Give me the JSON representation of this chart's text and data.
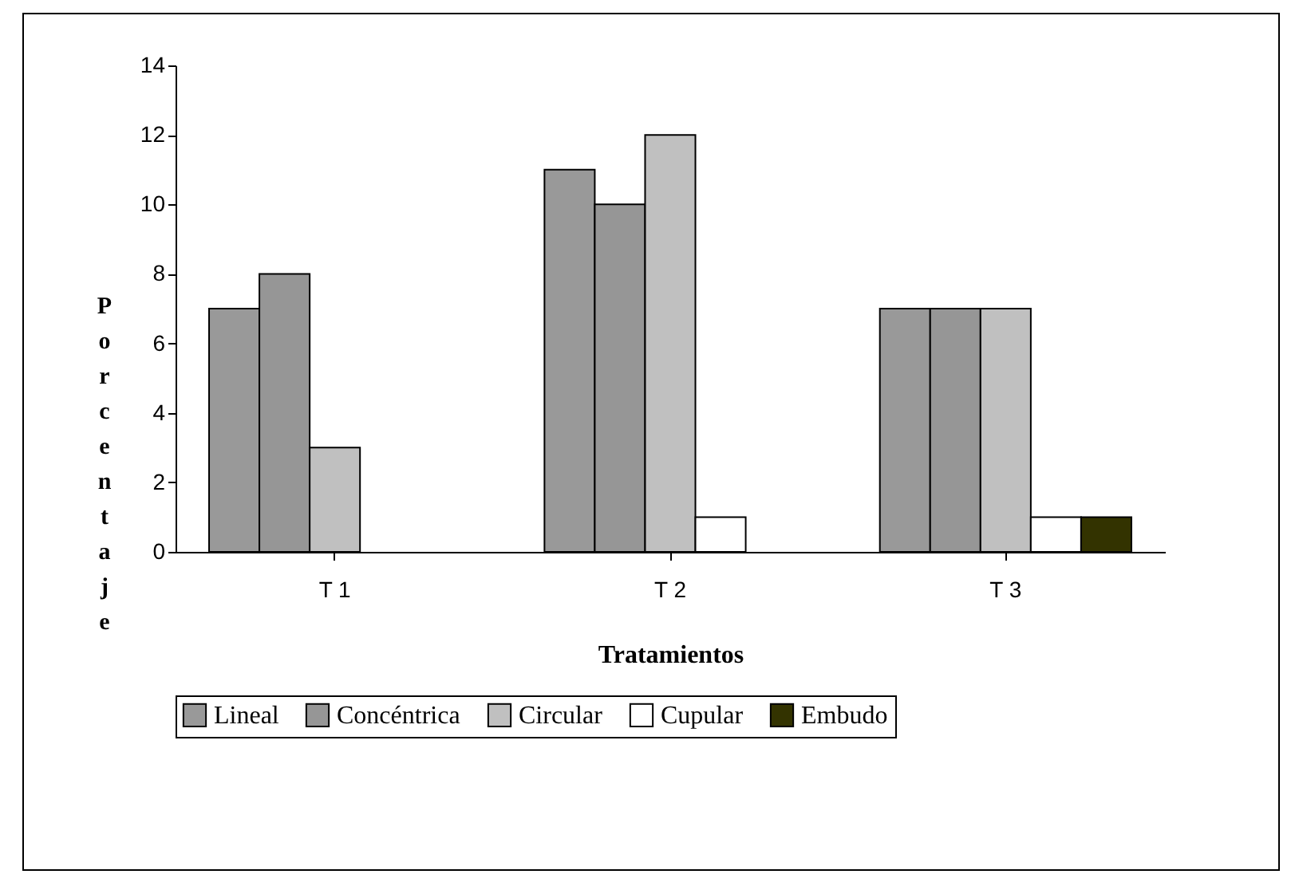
{
  "chart_data": {
    "type": "bar",
    "xlabel": "Tratamientos",
    "ylabel": "Porcentaje",
    "categories": [
      "T 1",
      "T 2",
      "T 3"
    ],
    "series": [
      {
        "name": "Lineal",
        "color": "#999999",
        "values": [
          7,
          11,
          7
        ]
      },
      {
        "name": "Concéntrica",
        "color": "#969696",
        "values": [
          8,
          10,
          7
        ]
      },
      {
        "name": "Circular",
        "color": "#c0c0c0",
        "values": [
          3,
          12,
          7
        ]
      },
      {
        "name": "Cupular",
        "color": "#ffffff",
        "values": [
          null,
          1,
          1
        ]
      },
      {
        "name": "Embudo",
        "color": "#333300",
        "values": [
          null,
          null,
          1
        ]
      }
    ],
    "ylim": [
      0,
      14
    ],
    "yticks": [
      0,
      2,
      4,
      6,
      8,
      10,
      12,
      14
    ],
    "grid": false,
    "legend": "bottom"
  }
}
